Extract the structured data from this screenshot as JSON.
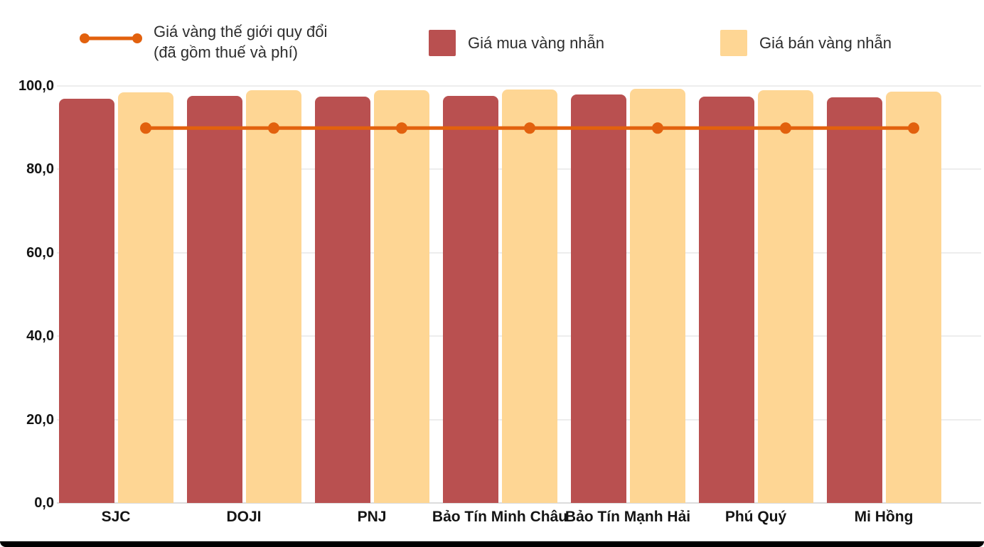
{
  "chart_data": {
    "type": "bar",
    "title": "",
    "xlabel": "",
    "ylabel": "",
    "categories": [
      "SJC",
      "DOJI",
      "PNJ",
      "Bảo Tín Minh Châu",
      "Bảo Tín Mạnh Hải",
      "Phú Quý",
      "Mi Hồng"
    ],
    "series": [
      {
        "name": "Giá mua vàng nhẫn",
        "kind": "bar",
        "color": "#B95050",
        "values": [
          97.0,
          97.6,
          97.5,
          97.6,
          97.9,
          97.5,
          97.2
        ]
      },
      {
        "name": "Giá bán vàng nhẫn",
        "kind": "bar",
        "color": "#FED694",
        "values": [
          98.5,
          99.0,
          98.9,
          99.1,
          99.4,
          99.0,
          98.7
        ]
      },
      {
        "name": "Giá vàng thế giới quy đổi (đã gồm thuế và phí)",
        "kind": "line",
        "color": "#E2610E",
        "values": [
          89.9,
          89.9,
          89.9,
          89.9,
          89.9,
          89.9,
          89.9
        ]
      }
    ],
    "ylim": [
      0,
      100
    ],
    "yticks": [
      0,
      20,
      40,
      60,
      80,
      100
    ],
    "ytick_labels": [
      "0,0",
      "20,0",
      "40,0",
      "60,0",
      "80,0",
      "100,0"
    ],
    "grid": true,
    "legend_position": "top"
  },
  "legend": {
    "world_line1": "Giá vàng thế giới quy đổi",
    "world_line2": "(đã gồm thuế và phí)",
    "buy": "Giá mua vàng nhẫn",
    "sell": "Giá bán vàng nhẫn"
  },
  "colors": {
    "buy_bar": "#B95050",
    "sell_bar": "#FED694",
    "world_line": "#E2610E",
    "grid": "#EDEDED",
    "baseline": "#DCDCDC",
    "axis_text": "#141414",
    "frame_bar": "#000000"
  }
}
